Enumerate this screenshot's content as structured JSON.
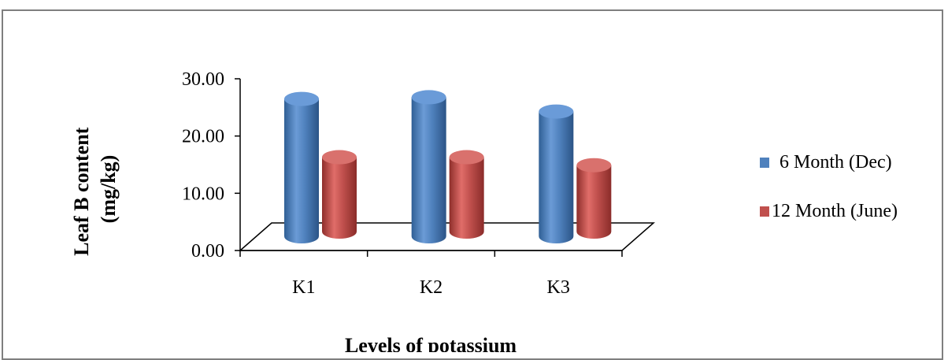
{
  "chart_data": {
    "type": "bar",
    "style": "3d-cylinder",
    "categories": [
      "K1",
      "K2",
      "K3"
    ],
    "series": [
      {
        "name": "6  Month (Dec)",
        "values": [
          24.0,
          24.3,
          21.8
        ],
        "color": "#4f81bd"
      },
      {
        "name": "12  Month (June)",
        "values": [
          13.0,
          13.0,
          11.6
        ],
        "color": "#c0504d"
      }
    ],
    "xlabel": "Levels of potassium",
    "ylabel": [
      "Leaf B content",
      "(mg/kg)"
    ],
    "yticks": [
      "0.00",
      "10.00",
      "20.00",
      "30.00"
    ],
    "ylim": [
      0,
      30
    ],
    "grid": false,
    "legend_position": "right"
  }
}
